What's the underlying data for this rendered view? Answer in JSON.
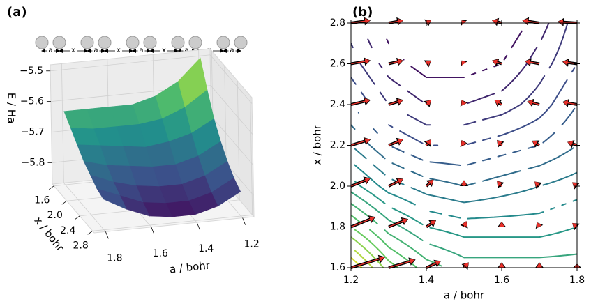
{
  "schematic": {
    "labels": [
      "a",
      "x",
      "a",
      "x",
      "a",
      "x",
      "a",
      "x",
      "a"
    ]
  },
  "chart_data": [
    {
      "type": "surface",
      "panel_label": "(a)",
      "xlabel": "a / bohr",
      "ylabel": "x / bohr",
      "zlabel": "E / Ha",
      "colormap": "viridis",
      "a": [
        1.2,
        1.3,
        1.4,
        1.5,
        1.6,
        1.7,
        1.8
      ],
      "x": [
        1.6,
        1.8,
        2.0,
        2.2,
        2.4,
        2.6,
        2.8
      ],
      "z": [
        [
          -5.5,
          -5.57,
          -5.61,
          -5.63,
          -5.63,
          -5.63,
          -5.63
        ],
        [
          -5.58,
          -5.63,
          -5.66,
          -5.67,
          -5.67,
          -5.67,
          -5.66
        ],
        [
          -5.65,
          -5.69,
          -5.71,
          -5.72,
          -5.71,
          -5.7,
          -5.69
        ],
        [
          -5.7,
          -5.74,
          -5.76,
          -5.76,
          -5.75,
          -5.74,
          -5.72
        ],
        [
          -5.74,
          -5.78,
          -5.8,
          -5.8,
          -5.79,
          -5.77,
          -5.74
        ],
        [
          -5.77,
          -5.81,
          -5.83,
          -5.83,
          -5.82,
          -5.79,
          -5.76
        ],
        [
          -5.79,
          -5.83,
          -5.85,
          -5.85,
          -5.84,
          -5.81,
          -5.77
        ]
      ],
      "alim": [
        1.85,
        1.15
      ],
      "xlim": [
        1.55,
        2.85
      ],
      "zlim": [
        -5.87,
        -5.48
      ],
      "aticks": [
        1.8,
        1.6,
        1.4,
        1.2
      ],
      "xticks": [
        1.6,
        {
          "value": 2.0,
          "label": "2.0"
        },
        2.4,
        2.8
      ],
      "zticks": [
        {
          "value": -5.5,
          "label": "−5.5"
        },
        {
          "value": -5.6,
          "label": "−5.6"
        },
        {
          "value": -5.7,
          "label": "−5.7"
        },
        {
          "value": -5.8,
          "label": "−5.8"
        }
      ]
    },
    {
      "type": "contour",
      "panel_label": "(b)",
      "xlabel": "a / bohr",
      "ylabel": "x / bohr",
      "colormap": "viridis",
      "xlim": [
        1.2,
        1.8
      ],
      "ylim": [
        1.6,
        2.8
      ],
      "xticks": [
        1.2,
        1.4,
        1.6,
        1.8
      ],
      "yticks": [
        1.6,
        1.8,
        {
          "value": 2.0,
          "label": "2.0"
        },
        2.2,
        2.4,
        2.6,
        2.8
      ],
      "levels": [
        -5.84,
        -5.82,
        -5.8,
        -5.78,
        -5.76,
        -5.74,
        -5.72,
        -5.7,
        -5.68,
        -5.66,
        -5.64,
        -5.62,
        -5.6,
        -5.58,
        -5.56,
        -5.54,
        -5.52,
        -5.5
      ],
      "arrow_colors": [
        "#000000",
        "#e8302a"
      ]
    }
  ]
}
